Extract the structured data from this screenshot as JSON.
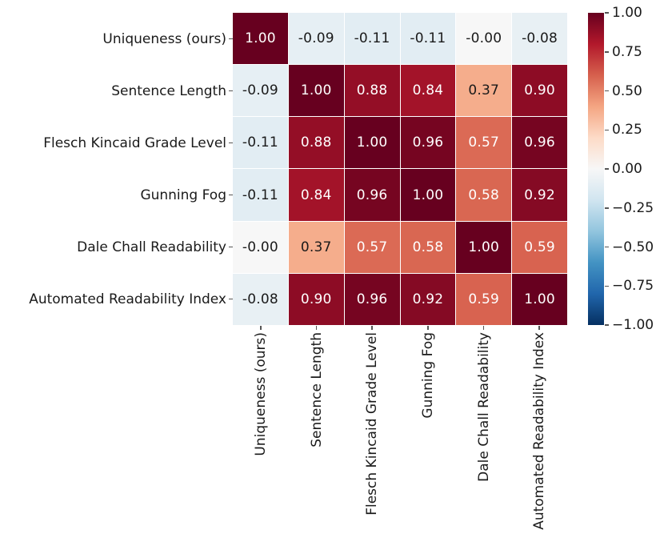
{
  "figure": {
    "background_color": "#ffffff",
    "label_color": "#1a1a1a",
    "tick_color": "#555555"
  },
  "chart_data": {
    "type": "heatmap",
    "title": "",
    "xlabel": "",
    "ylabel": "",
    "labels": [
      "Uniqueness (ours)",
      "Sentence Length",
      "Flesch Kincaid Grade Level",
      "Gunning Fog",
      "Dale Chall Readability",
      "Automated Readability Index"
    ],
    "matrix_display": [
      [
        "1.00",
        "-0.09",
        "-0.11",
        "-0.11",
        "-0.00",
        "-0.08"
      ],
      [
        "-0.09",
        "1.00",
        "0.88",
        "0.84",
        "0.37",
        "0.90"
      ],
      [
        "-0.11",
        "0.88",
        "1.00",
        "0.96",
        "0.57",
        "0.96"
      ],
      [
        "-0.11",
        "0.84",
        "0.96",
        "1.00",
        "0.58",
        "0.92"
      ],
      [
        "-0.00",
        "0.37",
        "0.57",
        "0.58",
        "1.00",
        "0.59"
      ],
      [
        "-0.08",
        "0.90",
        "0.96",
        "0.92",
        "0.59",
        "1.00"
      ]
    ],
    "matrix_values": [
      [
        1.0,
        -0.09,
        -0.11,
        -0.11,
        -0.0,
        -0.08
      ],
      [
        -0.09,
        1.0,
        0.88,
        0.84,
        0.37,
        0.9
      ],
      [
        -0.11,
        0.88,
        1.0,
        0.96,
        0.57,
        0.96
      ],
      [
        -0.11,
        0.84,
        0.96,
        1.0,
        0.58,
        0.92
      ],
      [
        -0.0,
        0.37,
        0.57,
        0.58,
        1.0,
        0.59
      ],
      [
        -0.08,
        0.9,
        0.96,
        0.92,
        0.59,
        1.0
      ]
    ],
    "vmin": -1,
    "vmax": 1,
    "colormap": {
      "name": "RdBu_r",
      "anchors": [
        "#053061",
        "#2166ac",
        "#4393c3",
        "#92c5de",
        "#d1e5f0",
        "#f7f7f7",
        "#fddbc7",
        "#f4a582",
        "#d6604d",
        "#b2182b",
        "#67001f"
      ]
    },
    "colorbar_ticks": [
      "1.00",
      "0.75",
      "0.50",
      "0.25",
      "0.00",
      "−0.25",
      "−0.50",
      "−0.75",
      "−1.00"
    ],
    "annot_text_light": "#ffffff",
    "annot_text_dark": "#1a1a1a",
    "gridline_color": "#ffffff",
    "x_tick_rotation": 90,
    "legend_position": "right-colorbar",
    "grid": false
  }
}
